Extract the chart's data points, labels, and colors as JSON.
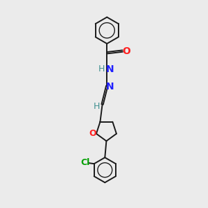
{
  "background_color": "#ebebeb",
  "bond_color": "#1a1a1a",
  "N_color": "#2020ff",
  "O_color": "#ff2020",
  "Cl_color": "#00a000",
  "H_color": "#409090",
  "lw": 1.4,
  "dbo": 0.055,
  "xlim": [
    0,
    10
  ],
  "ylim": [
    0,
    14
  ]
}
